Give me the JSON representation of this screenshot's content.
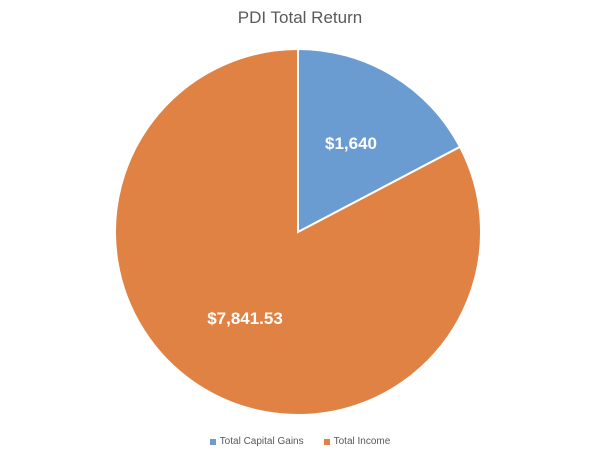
{
  "chart_data": {
    "type": "pie",
    "title": "PDI Total Return",
    "legend_position": "bottom",
    "slices": [
      {
        "name": "Total Capital Gains",
        "value": 1640,
        "label": "$1,640",
        "color": "#6a9bd1"
      },
      {
        "name": "Total Income",
        "value": 7841.53,
        "label": "$7,841.53",
        "color": "#e08244"
      }
    ]
  }
}
